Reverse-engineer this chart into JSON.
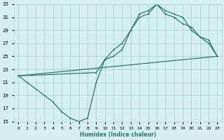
{
  "xlabel": "Humidex (Indice chaleur)",
  "line_color": "#2a7b6f",
  "bg_color": "#d4efec",
  "grid_color": "#a8d4d0",
  "xlim": [
    -0.5,
    23.5
  ],
  "ylim": [
    15,
    33
  ],
  "yticks": [
    15,
    17,
    19,
    21,
    23,
    25,
    27,
    29,
    31,
    33
  ],
  "xticks": [
    0,
    1,
    2,
    3,
    4,
    5,
    6,
    7,
    8,
    9,
    10,
    11,
    12,
    13,
    14,
    15,
    16,
    17,
    18,
    19,
    20,
    21,
    22,
    23
  ],
  "line1_x": [
    0,
    1,
    2,
    3,
    4,
    5,
    6,
    7,
    8,
    9,
    10,
    11,
    12,
    13,
    14,
    15,
    16,
    17,
    18,
    19,
    20,
    21,
    22,
    23
  ],
  "line1_y": [
    22,
    21,
    20,
    19,
    18,
    16.5,
    15.5,
    15,
    15.5,
    21,
    24.5,
    25,
    26,
    29,
    31,
    31.5,
    33,
    32,
    31.5,
    31,
    29,
    28,
    27,
    25
  ],
  "line2_x": [
    0,
    9,
    10,
    11,
    12,
    13,
    14,
    15,
    16,
    17,
    18,
    19,
    20,
    21,
    22,
    23
  ],
  "line2_y": [
    22,
    22.5,
    24.5,
    26,
    27,
    29,
    31.5,
    32,
    33,
    31.5,
    31,
    30,
    29.5,
    28,
    27.5,
    25
  ],
  "line3_x": [
    0,
    23
  ],
  "line3_y": [
    22,
    25
  ]
}
